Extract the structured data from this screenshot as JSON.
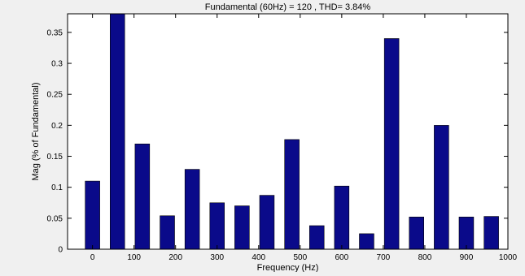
{
  "chart_data": {
    "type": "bar",
    "title": "Fundamental (60Hz) = 120 , THD= 3.84%",
    "xlabel": "Frequency (Hz)",
    "ylabel": "Mag (% of Fundamental)",
    "xlim": [
      -60,
      1000
    ],
    "ylim": [
      0,
      0.38
    ],
    "bar_width": 35,
    "x": [
      0,
      60,
      120,
      180,
      240,
      300,
      360,
      420,
      480,
      540,
      600,
      660,
      720,
      780,
      840,
      900,
      960
    ],
    "values": [
      0.11,
      0.4,
      0.17,
      0.054,
      0.129,
      0.075,
      0.07,
      0.087,
      0.177,
      0.038,
      0.102,
      0.025,
      0.34,
      0.052,
      0.2,
      0.052,
      0.053
    ],
    "xticks": [
      0,
      100,
      200,
      300,
      400,
      500,
      600,
      700,
      800,
      900,
      1000
    ],
    "xtick_labels": [
      "0",
      "100",
      "200",
      "300",
      "400",
      "500",
      "600",
      "700",
      "800",
      "900",
      "1000"
    ],
    "yticks": [
      0,
      0.05,
      0.1,
      0.15,
      0.2,
      0.25,
      0.3,
      0.35
    ],
    "ytick_labels": [
      "0",
      "0.05",
      "0.1",
      "0.15",
      "0.2",
      "0.25",
      "0.3",
      "0.35"
    ],
    "grid": false,
    "legend": "none",
    "bar_color": "#0a0a8a",
    "bar_edge_color": "#000000",
    "plot_background": "#ffffff",
    "figure_background": "#f0f0f0"
  }
}
